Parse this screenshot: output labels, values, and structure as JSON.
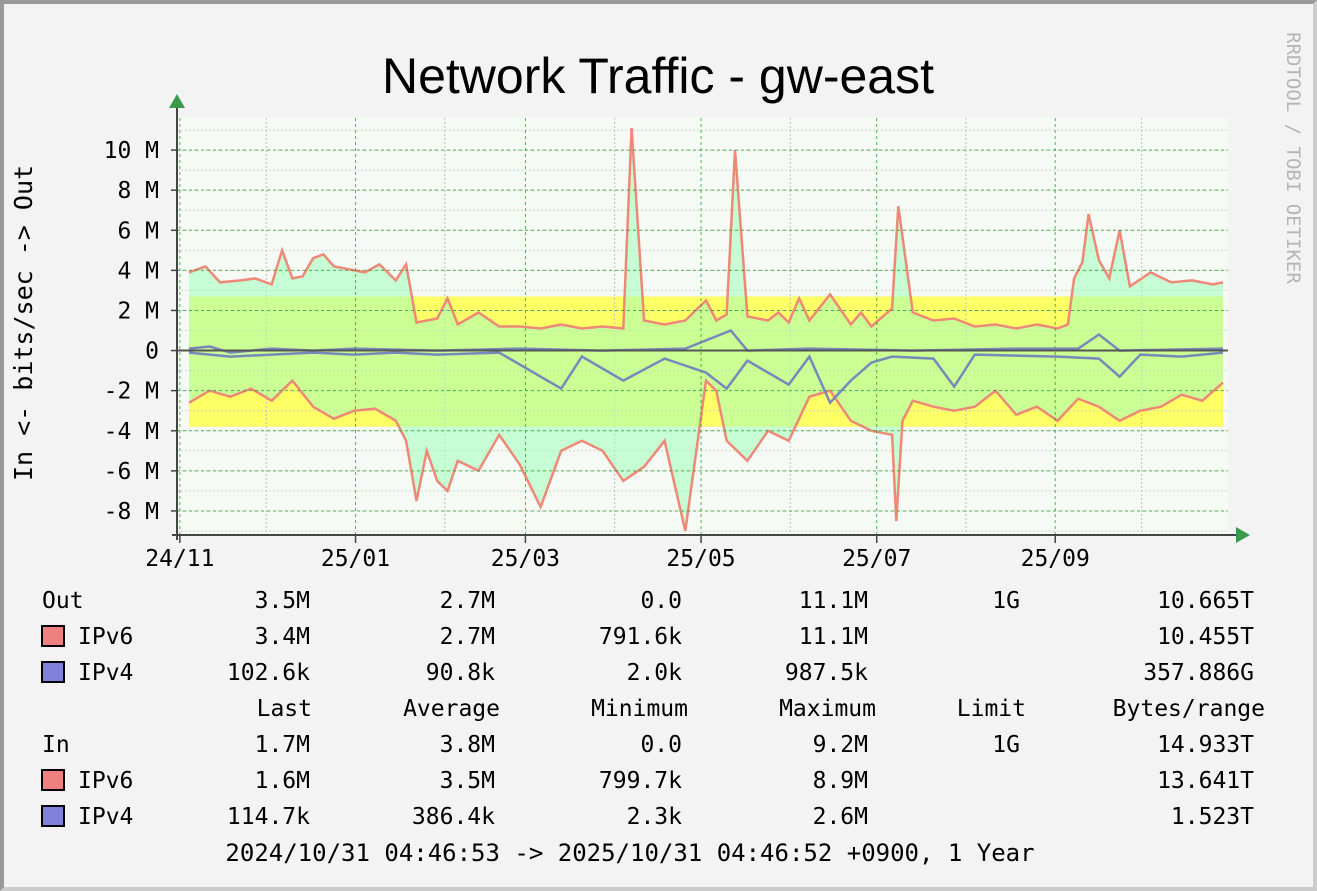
{
  "chart_data": {
    "type": "line",
    "title": "Network Traffic - gw-east",
    "ylabel": "In <- bits/sec -> Out",
    "watermark": "RRDTOOL / TOBI OETIKER",
    "xlim": [
      "2024-10-31",
      "2025-10-31"
    ],
    "ylim": [
      -9200000,
      11600000
    ],
    "y_ticks": [
      {
        "value": 10000000,
        "label": "10 M"
      },
      {
        "value": 8000000,
        "label": "8 M"
      },
      {
        "value": 6000000,
        "label": "6 M"
      },
      {
        "value": 4000000,
        "label": "4 M"
      },
      {
        "value": 2000000,
        "label": "2 M"
      },
      {
        "value": 0,
        "label": "0"
      },
      {
        "value": -2000000,
        "label": "-2 M"
      },
      {
        "value": -4000000,
        "label": "-4 M"
      },
      {
        "value": -6000000,
        "label": "-6 M"
      },
      {
        "value": -8000000,
        "label": "-8 M"
      }
    ],
    "x_ticks": [
      {
        "date": "2024-11-01",
        "label": "24/11"
      },
      {
        "date": "2025-01-01",
        "label": "25/01"
      },
      {
        "date": "2025-03-01",
        "label": "25/03"
      },
      {
        "date": "2025-05-01",
        "label": "25/05"
      },
      {
        "date": "2025-07-01",
        "label": "25/07"
      },
      {
        "date": "2025-09-01",
        "label": "25/09"
      }
    ],
    "bands": {
      "out_average": 2700000,
      "in_average": 3800000
    },
    "series": [
      {
        "name": "IPv6",
        "direction": "Out",
        "color": "#ee8877",
        "values": [
          [
            0,
            3.9
          ],
          [
            8,
            4.2
          ],
          [
            15,
            3.4
          ],
          [
            25,
            3.5
          ],
          [
            32,
            3.6
          ],
          [
            40,
            3.3
          ],
          [
            45,
            5.0
          ],
          [
            50,
            3.6
          ],
          [
            55,
            3.7
          ],
          [
            60,
            4.6
          ],
          [
            65,
            4.8
          ],
          [
            70,
            4.2
          ],
          [
            80,
            4.0
          ],
          [
            85,
            3.9
          ],
          [
            92,
            4.3
          ],
          [
            100,
            3.5
          ],
          [
            105,
            4.3
          ],
          [
            110,
            1.4
          ],
          [
            120,
            1.6
          ],
          [
            125,
            2.6
          ],
          [
            130,
            1.3
          ],
          [
            140,
            1.9
          ],
          [
            150,
            1.2
          ],
          [
            160,
            1.2
          ],
          [
            170,
            1.1
          ],
          [
            180,
            1.3
          ],
          [
            190,
            1.1
          ],
          [
            200,
            1.2
          ],
          [
            210,
            1.1
          ],
          [
            214,
            11.1
          ],
          [
            220,
            1.5
          ],
          [
            230,
            1.3
          ],
          [
            240,
            1.5
          ],
          [
            250,
            2.5
          ],
          [
            255,
            1.5
          ],
          [
            260,
            1.8
          ],
          [
            264,
            10.0
          ],
          [
            270,
            1.7
          ],
          [
            280,
            1.5
          ],
          [
            285,
            1.9
          ],
          [
            290,
            1.4
          ],
          [
            295,
            2.6
          ],
          [
            300,
            1.5
          ],
          [
            310,
            2.8
          ],
          [
            320,
            1.3
          ],
          [
            325,
            1.9
          ],
          [
            330,
            1.2
          ],
          [
            340,
            2.1
          ],
          [
            343,
            7.2
          ],
          [
            350,
            1.9
          ],
          [
            360,
            1.5
          ],
          [
            370,
            1.6
          ],
          [
            380,
            1.2
          ],
          [
            390,
            1.3
          ],
          [
            400,
            1.1
          ],
          [
            410,
            1.3
          ],
          [
            420,
            1.1
          ],
          [
            425,
            1.3
          ],
          [
            428,
            3.6
          ],
          [
            432,
            4.4
          ],
          [
            435,
            6.8
          ],
          [
            440,
            4.5
          ],
          [
            445,
            3.6
          ],
          [
            450,
            6.0
          ],
          [
            455,
            3.2
          ],
          [
            465,
            3.9
          ],
          [
            475,
            3.4
          ],
          [
            485,
            3.5
          ],
          [
            495,
            3.3
          ],
          [
            500,
            3.4
          ]
        ]
      },
      {
        "name": "IPv4",
        "direction": "Out",
        "color": "#7788bb",
        "values": [
          [
            0,
            0.1
          ],
          [
            10,
            0.2
          ],
          [
            20,
            -0.1
          ],
          [
            30,
            0.0
          ],
          [
            40,
            0.1
          ],
          [
            60,
            0.0
          ],
          [
            80,
            0.1
          ],
          [
            120,
            0.0
          ],
          [
            160,
            0.1
          ],
          [
            200,
            0.0
          ],
          [
            240,
            0.1
          ],
          [
            262,
            1.0
          ],
          [
            270,
            0.0
          ],
          [
            300,
            0.1
          ],
          [
            350,
            0.0
          ],
          [
            400,
            0.1
          ],
          [
            430,
            0.1
          ],
          [
            440,
            0.8
          ],
          [
            450,
            0.0
          ],
          [
            500,
            0.1
          ]
        ]
      },
      {
        "name": "IPv6",
        "direction": "In",
        "color": "#ee8877",
        "values": [
          [
            0,
            -2.6
          ],
          [
            10,
            -2.0
          ],
          [
            20,
            -2.3
          ],
          [
            30,
            -1.9
          ],
          [
            40,
            -2.5
          ],
          [
            50,
            -1.5
          ],
          [
            60,
            -2.8
          ],
          [
            70,
            -3.4
          ],
          [
            80,
            -3.0
          ],
          [
            90,
            -2.9
          ],
          [
            100,
            -3.5
          ],
          [
            105,
            -4.5
          ],
          [
            110,
            -7.5
          ],
          [
            115,
            -5.0
          ],
          [
            120,
            -6.5
          ],
          [
            125,
            -7.0
          ],
          [
            130,
            -5.5
          ],
          [
            140,
            -6.0
          ],
          [
            150,
            -4.2
          ],
          [
            160,
            -5.7
          ],
          [
            170,
            -7.8
          ],
          [
            180,
            -5.0
          ],
          [
            190,
            -4.5
          ],
          [
            200,
            -5.0
          ],
          [
            210,
            -6.5
          ],
          [
            220,
            -5.8
          ],
          [
            230,
            -4.5
          ],
          [
            240,
            -9.0
          ],
          [
            250,
            -1.5
          ],
          [
            255,
            -2.0
          ],
          [
            260,
            -4.5
          ],
          [
            270,
            -5.5
          ],
          [
            280,
            -4.0
          ],
          [
            290,
            -4.5
          ],
          [
            300,
            -2.3
          ],
          [
            310,
            -2.0
          ],
          [
            320,
            -3.5
          ],
          [
            330,
            -4.0
          ],
          [
            340,
            -4.2
          ],
          [
            342,
            -8.5
          ],
          [
            345,
            -3.5
          ],
          [
            350,
            -2.5
          ],
          [
            360,
            -2.8
          ],
          [
            370,
            -3.0
          ],
          [
            380,
            -2.8
          ],
          [
            390,
            -2.0
          ],
          [
            400,
            -3.2
          ],
          [
            410,
            -2.8
          ],
          [
            420,
            -3.5
          ],
          [
            430,
            -2.4
          ],
          [
            440,
            -2.8
          ],
          [
            450,
            -3.5
          ],
          [
            460,
            -3.0
          ],
          [
            470,
            -2.8
          ],
          [
            480,
            -2.2
          ],
          [
            490,
            -2.5
          ],
          [
            500,
            -1.6
          ]
        ]
      },
      {
        "name": "IPv4",
        "direction": "In",
        "color": "#7788bb",
        "values": [
          [
            0,
            -0.1
          ],
          [
            20,
            -0.3
          ],
          [
            40,
            -0.2
          ],
          [
            60,
            -0.1
          ],
          [
            80,
            -0.2
          ],
          [
            100,
            -0.1
          ],
          [
            120,
            -0.2
          ],
          [
            150,
            -0.1
          ],
          [
            180,
            -1.9
          ],
          [
            190,
            -0.3
          ],
          [
            210,
            -1.5
          ],
          [
            230,
            -0.4
          ],
          [
            250,
            -1.1
          ],
          [
            260,
            -1.9
          ],
          [
            270,
            -0.5
          ],
          [
            290,
            -1.7
          ],
          [
            300,
            -0.3
          ],
          [
            310,
            -2.6
          ],
          [
            320,
            -1.5
          ],
          [
            330,
            -0.6
          ],
          [
            340,
            -0.3
          ],
          [
            360,
            -0.4
          ],
          [
            370,
            -1.8
          ],
          [
            380,
            -0.2
          ],
          [
            420,
            -0.3
          ],
          [
            440,
            -0.4
          ],
          [
            450,
            -1.3
          ],
          [
            460,
            -0.2
          ],
          [
            480,
            -0.3
          ],
          [
            500,
            -0.1
          ]
        ]
      }
    ]
  },
  "legend": {
    "header": {
      "last": "Last",
      "average": "Average",
      "minimum": "Minimum",
      "maximum": "Maximum",
      "limit": "Limit",
      "bytes": "Bytes/range"
    },
    "out": {
      "label": "Out",
      "last": "3.5M",
      "average": "2.7M",
      "minimum": "0.0",
      "maximum": "11.1M",
      "limit": "1G",
      "bytes": "10.665T"
    },
    "out_ipv6": {
      "label": "IPv6",
      "color": "#f08080",
      "last": "3.4M",
      "average": "2.7M",
      "minimum": "791.6k",
      "maximum": "11.1M",
      "limit": "",
      "bytes": "10.455T"
    },
    "out_ipv4": {
      "label": "IPv4",
      "color": "#8080dd",
      "last": "102.6k",
      "average": "90.8k",
      "minimum": "2.0k",
      "maximum": "987.5k",
      "limit": "",
      "bytes": "357.886G"
    },
    "in": {
      "label": "In",
      "last": "1.7M",
      "average": "3.8M",
      "minimum": "0.0",
      "maximum": "9.2M",
      "limit": "1G",
      "bytes": "14.933T"
    },
    "in_ipv6": {
      "label": "IPv6",
      "color": "#f08080",
      "last": "1.6M",
      "average": "3.5M",
      "minimum": "799.7k",
      "maximum": "8.9M",
      "limit": "",
      "bytes": "13.641T"
    },
    "in_ipv4": {
      "label": "IPv4",
      "color": "#8080dd",
      "last": "114.7k",
      "average": "386.4k",
      "minimum": "2.3k",
      "maximum": "2.6M",
      "limit": "",
      "bytes": "1.523T"
    },
    "footer": "2024/10/31 04:46:53 -> 2025/10/31 04:46:52 +0900, 1 Year"
  }
}
